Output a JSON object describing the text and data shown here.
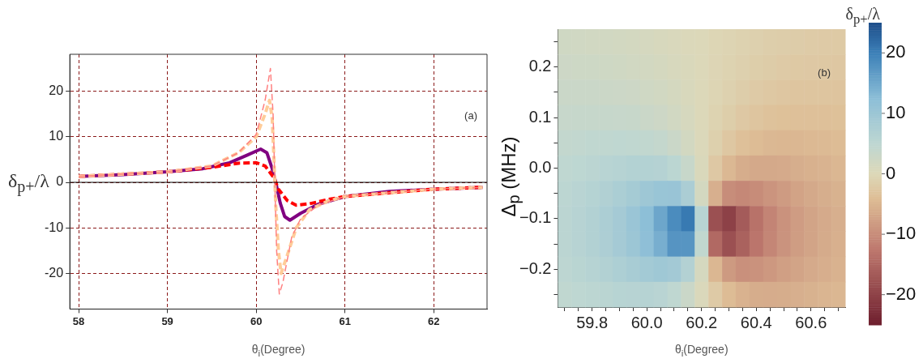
{
  "chart_data": [
    {
      "type": "line",
      "xlabel": "θ$_{i}$(Degree)",
      "ylabel": "δ$_{p+}$/λ",
      "annotations": [
        "(a)"
      ],
      "xlim": [
        57.9,
        62.6
      ],
      "ylim": [
        -27.8,
        28.1
      ],
      "xticks": [
        58,
        59,
        60,
        61,
        62
      ],
      "yticks": [
        -20,
        -10,
        0,
        10,
        20
      ],
      "grid": true,
      "legend": false,
      "ref_lines": [
        {
          "axis": "y",
          "value": 0,
          "color": "#000000"
        }
      ],
      "series": [
        {
          "color": "#800080",
          "line_style": "solid",
          "x": [
            58,
            58.5,
            59,
            59.4,
            59.7,
            59.9,
            60.05,
            60.12,
            60.18,
            60.22,
            60.27,
            60.32,
            60.38,
            60.5,
            60.7,
            61,
            61.5,
            62,
            62.55
          ],
          "values": [
            1.3,
            1.7,
            2.3,
            3.0,
            4.3,
            6.0,
            7.3,
            6.5,
            3,
            0,
            -4.5,
            -7.5,
            -8.3,
            -6.8,
            -4.8,
            -3.1,
            -2.0,
            -1.5,
            -1.1
          ]
        },
        {
          "color": "#ff0000",
          "line_style": "dashed",
          "x": [
            58,
            59,
            59.5,
            59.8,
            60.0,
            60.1,
            60.2,
            60.25,
            60.35,
            60.45,
            60.6,
            60.8,
            61,
            62,
            62.55
          ],
          "values": [
            1.3,
            2.3,
            3.3,
            4.2,
            4.3,
            3.6,
            1.0,
            -1.5,
            -4,
            -5.0,
            -4.7,
            -3.8,
            -3.1,
            -1.5,
            -1.1
          ]
        },
        {
          "color": "#ffcc99",
          "line_style": "dashed",
          "x": [
            58,
            59,
            59.5,
            59.8,
            60,
            60.1,
            60.15,
            60.18,
            60.2,
            60.22,
            60.25,
            60.28,
            60.35,
            60.45,
            60.6,
            60.8,
            61,
            62,
            62.55
          ],
          "values": [
            1.3,
            2.3,
            3.6,
            6.5,
            10,
            15,
            18,
            14,
            5,
            -5,
            -15,
            -20,
            -16,
            -10,
            -6,
            -4.2,
            -3.1,
            -1.5,
            -1.1
          ]
        },
        {
          "color": "#ff8080",
          "line_style": "dashed",
          "x": [
            58,
            59,
            59.5,
            59.8,
            60,
            60.1,
            60.16,
            60.19,
            60.21,
            60.23,
            60.26,
            60.3,
            60.4,
            60.5,
            60.7,
            61,
            62,
            62.55
          ],
          "values": [
            1.3,
            2.3,
            3.6,
            6.5,
            10.5,
            18,
            25,
            15,
            0,
            -15,
            -24.5,
            -22,
            -12,
            -8,
            -5,
            -3.1,
            -1.5,
            -1.1
          ]
        }
      ]
    },
    {
      "type": "heatmap",
      "xlabel": "θ$_{i}$(Degree)",
      "ylabel": "Δ$_{p}$ (MHz)",
      "clabel": "δ$_{p+}$/λ",
      "annotations": [
        "(b)"
      ],
      "clim": [
        -25,
        25
      ],
      "cticks": [
        {
          "value": -20,
          "label": "−20"
        },
        {
          "value": -10,
          "label": "−10"
        },
        0,
        10,
        20
      ],
      "categories": [
        null,
        null,
        "59.8",
        null,
        null,
        null,
        "60.0",
        null,
        null,
        null,
        "60.2",
        null,
        null,
        null,
        "60.4",
        null,
        null,
        null,
        "60.6",
        null,
        null
      ],
      "y_categories": [
        null,
        "0.2",
        null,
        "0.1",
        null,
        "0.0",
        null,
        "−0.1",
        null,
        "−0.2",
        null
      ],
      "cells": [
        [
          2.2,
          2.1,
          2.0,
          1.9,
          1.8,
          1.6,
          1.3,
          1.0,
          0.7,
          0.4,
          0.1,
          -0.3,
          -0.6,
          -0.9,
          -1.2,
          -1.5,
          -1.7,
          -1.8,
          -2.0,
          -2.1,
          -2.2
        ],
        [
          2.6,
          2.5,
          2.5,
          2.4,
          2.2,
          2.0,
          1.7,
          1.4,
          1.0,
          0.6,
          0.1,
          -0.4,
          -0.8,
          -1.2,
          -1.6,
          -1.9,
          -2.1,
          -2.3,
          -2.4,
          -2.5,
          -2.6
        ],
        [
          3.0,
          3.1,
          3.0,
          2.9,
          2.8,
          2.6,
          2.3,
          1.9,
          1.4,
          0.8,
          0.1,
          -0.5,
          -1.1,
          -1.7,
          -2.1,
          -2.5,
          -2.7,
          -2.9,
          -3.0,
          -3.0,
          -3.1
        ],
        [
          3.6,
          3.7,
          3.7,
          3.7,
          3.6,
          3.5,
          3.1,
          2.6,
          2.0,
          1.1,
          0.2,
          -0.8,
          -1.6,
          -2.4,
          -3.0,
          -3.4,
          -3.6,
          -3.7,
          -3.7,
          -3.7,
          -3.6
        ],
        [
          4.2,
          4.4,
          4.6,
          4.7,
          4.8,
          4.7,
          4.5,
          4.0,
          3.1,
          1.8,
          0.3,
          -1.3,
          -2.6,
          -3.7,
          -4.3,
          -4.7,
          -4.8,
          -4.8,
          -4.6,
          -4.5,
          -4.3
        ],
        [
          4.8,
          5.1,
          5.5,
          5.9,
          6.2,
          6.6,
          6.6,
          6.4,
          5.4,
          3.5,
          0.6,
          -2.4,
          -4.7,
          -6.1,
          -6.6,
          -6.6,
          -6.4,
          -6.0,
          -5.6,
          -5.3,
          -4.9
        ],
        [
          5.3,
          5.8,
          6.3,
          7.0,
          7.8,
          8.7,
          9.8,
          10.5,
          10.6,
          7.9,
          1.6,
          -5.8,
          -10.0,
          -10.6,
          -10.1,
          -9.1,
          -8.2,
          -7.3,
          -6.6,
          -6.0,
          -5.5
        ],
        [
          5.5,
          6.1,
          6.8,
          7.7,
          8.8,
          10.4,
          12.3,
          15.4,
          18.6,
          20.6,
          5.9,
          -18.0,
          -20.1,
          -16.5,
          -13.4,
          -11.1,
          -9.4,
          -8.1,
          -7.2,
          -6.4,
          -5.8
        ],
        [
          5.5,
          6.1,
          6.8,
          7.6,
          8.8,
          10.1,
          12.1,
          14.4,
          17.6,
          17.5,
          4.5,
          -14.6,
          -18.0,
          -15.6,
          -12.9,
          -10.8,
          -9.2,
          -8.0,
          -7.1,
          -6.3,
          -5.7
        ],
        [
          5.2,
          5.7,
          6.2,
          6.8,
          7.5,
          8.3,
          9.0,
          9.6,
          9.1,
          6.7,
          1.3,
          -4.8,
          -8.4,
          -9.6,
          -9.3,
          -8.6,
          -7.8,
          -7.1,
          -6.4,
          -5.9,
          -5.4
        ],
        [
          4.7,
          5.0,
          5.3,
          5.6,
          6.0,
          6.1,
          6.2,
          5.8,
          4.8,
          3.0,
          0.5,
          -2.1,
          -4.2,
          -5.4,
          -6.1,
          -6.2,
          -6.1,
          -5.8,
          -5.5,
          -5.1,
          -4.8
        ]
      ]
    }
  ]
}
